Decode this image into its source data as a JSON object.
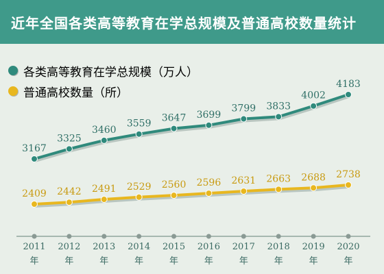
{
  "header": {
    "title": "近年全国各类高等教育在学总规模及普通高校数量统计"
  },
  "colors": {
    "header_bg": "#3f9a8a",
    "series_scale": "#2f8a7c",
    "series_schools": "#e8b71f"
  },
  "chart_data": {
    "type": "line",
    "title": "近年全国各类高等教育在学总规模及普通高校数量统计",
    "x": [
      "2011",
      "2012",
      "2013",
      "2014",
      "2015",
      "2016",
      "2017",
      "2018",
      "2019",
      "2020"
    ],
    "x_suffix": "年",
    "series": [
      {
        "name": "各类高等教育在学总规模（万人）",
        "values": [
          3167,
          3325,
          3460,
          3559,
          3647,
          3699,
          3799,
          3833,
          4002,
          4183
        ]
      },
      {
        "name": "普通高校数量（所）",
        "values": [
          2409,
          2442,
          2491,
          2529,
          2560,
          2596,
          2631,
          2663,
          2688,
          2738
        ]
      }
    ],
    "xlabel": "",
    "ylabel": "",
    "y_axis_visible": false,
    "grid": false,
    "legend_position": "top-left",
    "data_labels": true
  }
}
